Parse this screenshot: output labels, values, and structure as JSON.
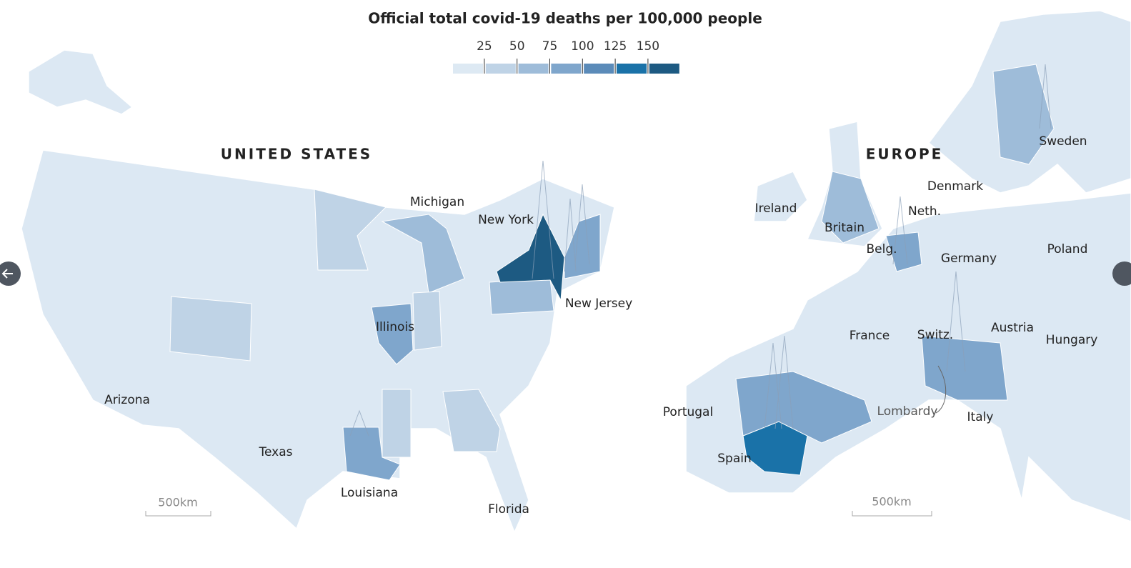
{
  "title": "Official total covid-19 deaths per 100,000 people",
  "legend": {
    "ticks": [
      25,
      50,
      75,
      100,
      125,
      150
    ],
    "colors": [
      "#dde9f3",
      "#bfd3e6",
      "#9ebcd9",
      "#7fa6cc",
      "#5b8bb9",
      "#1a72a8",
      "#1d5a82"
    ]
  },
  "maps": [
    {
      "heading": "UNITED STATES",
      "scale_label": "500km",
      "labels": [
        "Michigan",
        "New York",
        "New Jersey",
        "Illinois",
        "Arizona",
        "Texas",
        "Louisiana",
        "Florida"
      ]
    },
    {
      "heading": "EUROPE",
      "scale_label": "500km",
      "labels": [
        "Sweden",
        "Denmark",
        "Ireland",
        "Neth.",
        "Britain",
        "Belg.",
        "Germany",
        "Poland",
        "France",
        "Switz.",
        "Austria",
        "Hungary",
        "Portugal",
        "Lombardy",
        "Italy",
        "Spain"
      ]
    }
  ]
}
